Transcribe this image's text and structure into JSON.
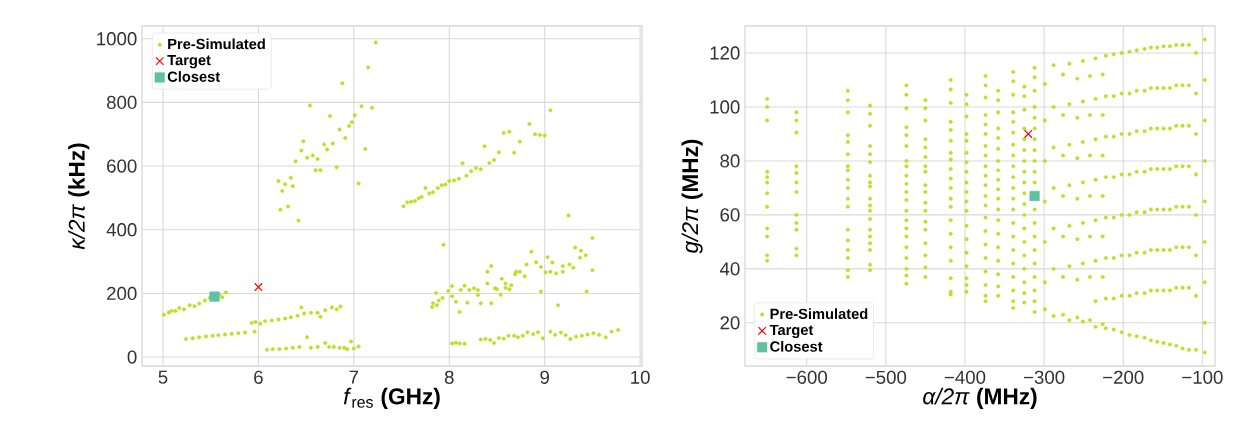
{
  "chart_data": [
    {
      "type": "scatter",
      "xlabel": "*f*$_{res}$ **(GHz)**",
      "ylabel": "*κ/2π* **(kHz)**",
      "grid": true,
      "legend": "top left",
      "xlim": [
        4.78,
        10.02
      ],
      "ylim": [
        -28,
        1040
      ],
      "xticks": [
        5,
        6,
        7,
        8,
        9,
        10
      ],
      "yticks": [
        0,
        200,
        400,
        600,
        800,
        1000
      ],
      "series": [
        {
          "name": "Pre-Simulated",
          "color": "#bcdf27",
          "marker": "circle",
          "x": [
            5.01,
            5.06,
            5.09,
            5.13,
            5.17,
            5.22,
            5.28,
            5.33,
            5.38,
            5.44,
            5.49,
            5.59,
            5.62,
            5.66,
            5.24,
            5.31,
            5.38,
            5.45,
            5.52,
            5.58,
            5.65,
            5.72,
            5.79,
            5.86,
            5.96,
            5.93,
            5.97,
            6.02,
            6.07,
            6.14,
            6.21,
            6.28,
            6.34,
            6.41,
            6.45,
            6.48,
            6.55,
            6.62,
            6.65,
            6.7,
            6.77,
            6.82,
            6.86,
            6.09,
            6.15,
            6.22,
            6.29,
            6.36,
            6.43,
            6.51,
            6.55,
            6.62,
            6.7,
            6.74,
            6.79,
            6.85,
            6.9,
            6.93,
            6.97,
            7.0,
            7.05,
            7.23,
            7.15,
            6.88,
            6.54,
            7.08,
            7.19,
            6.75,
            7.01,
            6.98,
            6.95,
            6.85,
            6.91,
            6.47,
            6.45,
            6.69,
            6.78,
            6.72,
            7.12,
            6.57,
            6.51,
            6.62,
            6.39,
            6.6,
            6.65,
            6.82,
            7.05,
            6.21,
            6.34,
            6.28,
            6.36,
            6.25,
            6.23,
            6.31,
            6.42,
            7.52,
            7.56,
            7.6,
            7.64,
            7.68,
            7.71,
            7.75,
            7.79,
            7.83,
            7.88,
            7.92,
            7.96,
            8.0,
            8.05,
            8.1,
            8.14,
            8.18,
            8.23,
            8.28,
            8.33,
            8.37,
            8.42,
            8.47,
            8.52,
            8.57,
            8.63,
            8.68,
            8.74,
            8.84,
            8.9,
            8.95,
            9.0,
            9.06,
            9.25,
            7.94,
            9.5,
            9.32,
            9.38,
            9.43,
            9.37,
            8.86,
            9.03,
            9.08,
            8.81,
            8.91,
            8.44,
            9.19,
            9.26,
            9.3,
            8.96,
            9.01,
            9.12,
            9.19,
            8.69,
            8.7,
            8.79,
            8.74,
            8.4,
            8.55,
            8.4,
            8.59,
            8.65,
            8.59,
            8.63,
            8.5,
            8.16,
            8.03,
            7.99,
            8.12,
            8.26,
            8.3,
            8.21,
            8.54,
            8.3,
            7.86,
            7.93,
            7.89,
            8.03,
            7.83,
            7.87,
            7.82,
            8.07,
            8.19,
            8.33,
            8.44,
            8.11,
            9.14,
            8.96,
            9.44,
            9.5,
            9.06,
            8.48,
            8.03,
            8.07,
            8.11,
            8.16,
            8.33,
            8.38,
            8.43,
            8.47,
            8.52,
            8.57,
            8.62,
            8.68,
            8.72,
            8.77,
            8.82,
            8.88,
            8.93,
            8.98,
            9.06,
            9.11,
            9.17,
            9.22,
            9.27,
            9.33,
            9.39,
            9.45,
            9.51,
            9.57,
            9.64,
            9.7,
            9.77
          ],
          "values": [
            133,
            140,
            145,
            145,
            154,
            150,
            163,
            160,
            168,
            178,
            186,
            196,
            188,
            203,
            57,
            59,
            62,
            65,
            67,
            69,
            71,
            73,
            75,
            77,
            80,
            107,
            110,
            105,
            113,
            115,
            118,
            121,
            125,
            130,
            156,
            137,
            139,
            139,
            127,
            147,
            156,
            150,
            159,
            23,
            25,
            25,
            27,
            29,
            32,
            62,
            29,
            32,
            44,
            32,
            32,
            29,
            29,
            25,
            49,
            27,
            33,
            988,
            910,
            860,
            790,
            788,
            783,
            757,
            760,
            738,
            726,
            715,
            688,
            678,
            649,
            668,
            671,
            652,
            654,
            633,
            626,
            622,
            615,
            587,
            587,
            596,
            545,
            553,
            563,
            543,
            537,
            522,
            463,
            473,
            429,
            474,
            486,
            488,
            490,
            499,
            503,
            531,
            514,
            518,
            531,
            540,
            542,
            553,
            555,
            560,
            609,
            570,
            584,
            594,
            590,
            662,
            610,
            619,
            643,
            704,
            708,
            642,
            677,
            732,
            700,
            698,
            696,
            775,
            445,
            353,
            374,
            344,
            334,
            320,
            312,
            331,
            314,
            297,
            291,
            298,
            286,
            286,
            291,
            281,
            283,
            266,
            263,
            268,
            260,
            268,
            254,
            268,
            268,
            246,
            231,
            231,
            226,
            218,
            213,
            213,
            224,
            223,
            208,
            211,
            216,
            211,
            211,
            196,
            195,
            201,
            186,
            178,
            191,
            169,
            163,
            157,
            174,
            171,
            169,
            169,
            142,
            163,
            206,
            206,
            273,
            268,
            216,
            43,
            45,
            43,
            42,
            55,
            57,
            54,
            44,
            60,
            58,
            67,
            67,
            62,
            67,
            78,
            72,
            78,
            59,
            80,
            70,
            77,
            69,
            57,
            64,
            67,
            71,
            75,
            70,
            62,
            80,
            85
          ]
        },
        {
          "name": "Target",
          "color": "#ff0000",
          "marker": "cross",
          "x": [
            6.0
          ],
          "values": [
            220
          ]
        },
        {
          "name": "Closest",
          "color": "#5ec2a2",
          "marker": "square",
          "x": [
            5.54
          ],
          "values": [
            190
          ]
        }
      ]
    },
    {
      "type": "scatter",
      "xlabel": "*α/2π* **(MHz)**",
      "ylabel": "*g/2π* **(MHz)**",
      "grid": true,
      "legend": "bottom left",
      "xlim": [
        -678,
        -84
      ],
      "ylim": [
        4,
        130
      ],
      "xticks": [
        {
          "value": -600,
          "label": "−600"
        },
        {
          "value": -500,
          "label": "−500"
        },
        {
          "value": -400,
          "label": "−400"
        },
        {
          "value": -300,
          "label": "−300"
        },
        {
          "value": -200,
          "label": "−200"
        },
        {
          "value": -100,
          "label": "−100"
        }
      ],
      "yticks": [
        20,
        40,
        60,
        80,
        100,
        120
      ],
      "series": [
        {
          "name": "Pre-Simulated",
          "color": "#bcdf27",
          "marker": "circle",
          "x": [
            -650,
            -650,
            -650,
            -650,
            -650,
            -650,
            -650,
            -650,
            -650,
            -650,
            -650,
            -650,
            -613,
            -613,
            -613,
            -613,
            -613,
            -613,
            -613,
            -613,
            -613,
            -613,
            -613,
            -613,
            -548,
            -548,
            -548,
            -548,
            -548,
            -548,
            -548,
            -548,
            -548,
            -548,
            -548,
            -548,
            -548,
            -548,
            -548,
            -548,
            -548,
            -548,
            -520,
            -520,
            -520,
            -520,
            -520,
            -520,
            -520,
            -520,
            -520,
            -520,
            -520,
            -520,
            -520,
            -520,
            -520,
            -520,
            -520,
            -520,
            -520,
            -474,
            -474,
            -474,
            -474,
            -474,
            -474,
            -474,
            -474,
            -474,
            -474,
            -474,
            -474,
            -474,
            -474,
            -474,
            -474,
            -474,
            -474,
            -474,
            -474,
            -474,
            -450,
            -450,
            -450,
            -450,
            -450,
            -450,
            -450,
            -450,
            -450,
            -450,
            -450,
            -450,
            -450,
            -450,
            -450,
            -450,
            -450,
            -450,
            -418,
            -418,
            -418,
            -418,
            -418,
            -418,
            -418,
            -418,
            -418,
            -418,
            -418,
            -418,
            -418,
            -418,
            -418,
            -418,
            -418,
            -418,
            -418,
            -418,
            -398,
            -398,
            -398,
            -398,
            -398,
            -398,
            -398,
            -398,
            -398,
            -398,
            -398,
            -398,
            -398,
            -398,
            -398,
            -398,
            -398,
            -398,
            -398,
            -374,
            -374,
            -374,
            -374,
            -374,
            -374,
            -374,
            -374,
            -374,
            -374,
            -374,
            -374,
            -374,
            -374,
            -374,
            -374,
            -374,
            -374,
            -374,
            -374,
            -374,
            -358,
            -358,
            -358,
            -358,
            -358,
            -358,
            -358,
            -358,
            -358,
            -358,
            -358,
            -358,
            -358,
            -358,
            -358,
            -358,
            -358,
            -358,
            -358,
            -339,
            -339,
            -339,
            -339,
            -339,
            -339,
            -339,
            -339,
            -339,
            -339,
            -339,
            -339,
            -339,
            -339,
            -339,
            -339,
            -339,
            -339,
            -339,
            -339,
            -339,
            -325,
            -325,
            -325,
            -325,
            -325,
            -325,
            -325,
            -325,
            -325,
            -325,
            -325,
            -325,
            -325,
            -325,
            -325,
            -325,
            -325,
            -325,
            -325,
            -312,
            -312,
            -312,
            -312,
            -312,
            -312,
            -312,
            -312,
            -312,
            -312,
            -312,
            -312,
            -312,
            -312,
            -312,
            -312,
            -312,
            -312,
            -312,
            -312,
            -299,
            -299,
            -299,
            -299,
            -299,
            -299,
            -299,
            -288,
            -288,
            -288,
            -288,
            -288,
            -288,
            -288,
            -276,
            -276,
            -276,
            -276,
            -276,
            -276,
            -276,
            -268,
            -268,
            -268,
            -268,
            -268,
            -268,
            -268,
            -258,
            -258,
            -258,
            -258,
            -258,
            -258,
            -258,
            -251,
            -251,
            -251,
            -251,
            -251,
            -251,
            -251,
            -242,
            -242,
            -242,
            -242,
            -242,
            -242,
            -242,
            -235,
            -235,
            -235,
            -235,
            -235,
            -235,
            -235,
            -235,
            -226,
            -226,
            -226,
            -226,
            -226,
            -226,
            -226,
            -222,
            -222,
            -222,
            -222,
            -222,
            -222,
            -222,
            -222,
            -212,
            -212,
            -212,
            -212,
            -212,
            -212,
            -212,
            -212,
            -202,
            -202,
            -202,
            -202,
            -202,
            -202,
            -202,
            -202,
            -192,
            -192,
            -192,
            -192,
            -192,
            -192,
            -192,
            -192,
            -183,
            -183,
            -183,
            -183,
            -183,
            -183,
            -183,
            -183,
            -173,
            -173,
            -173,
            -173,
            -173,
            -173,
            -173,
            -173,
            -165,
            -165,
            -165,
            -165,
            -165,
            -165,
            -165,
            -165,
            -157,
            -157,
            -157,
            -157,
            -157,
            -157,
            -157,
            -157,
            -149,
            -149,
            -149,
            -149,
            -149,
            -149,
            -149,
            -149,
            -141,
            -141,
            -141,
            -141,
            -141,
            -141,
            -141,
            -141,
            -133,
            -133,
            -133,
            -133,
            -133,
            -133,
            -133,
            -133,
            -125,
            -125,
            -125,
            -125,
            -125,
            -125,
            -125,
            -125,
            -117,
            -117,
            -117,
            -117,
            -117,
            -117,
            -117,
            -117,
            -108,
            -108,
            -108,
            -108,
            -108,
            -108,
            -108,
            -108,
            -97,
            -97,
            -97,
            -97,
            -97,
            -97,
            -97,
            -97,
            -97
          ],
          "values": [
            103,
            100,
            95,
            76,
            74,
            72,
            68,
            63,
            55,
            52,
            45,
            43,
            98,
            95,
            90.5,
            78,
            75.5,
            72,
            68.5,
            60,
            57,
            54.5,
            47.5,
            45,
            106,
            102.5,
            98,
            89.5,
            87,
            82.5,
            78,
            76.5,
            73,
            70,
            66,
            63,
            54.5,
            50.5,
            47,
            44,
            39.5,
            37,
            100.5,
            97.5,
            93,
            85.5,
            82.5,
            79.5,
            74.5,
            72,
            70.5,
            66,
            63.5,
            61.5,
            58.5,
            54.5,
            52,
            49.5,
            47,
            41.5,
            39.5,
            108,
            104.5,
            99.5,
            92.5,
            89.5,
            85.5,
            80,
            78,
            74.5,
            71.5,
            68.5,
            65.5,
            61.5,
            58,
            55,
            52,
            48,
            44,
            40,
            37.5,
            34.5,
            102.5,
            99.5,
            95,
            88,
            85,
            81.5,
            78,
            76,
            71,
            68.5,
            64.5,
            61.5,
            57.5,
            54.5,
            49.5,
            45,
            40.5,
            37,
            110,
            106.5,
            101.5,
            94.5,
            91.5,
            87.5,
            83,
            80.5,
            77,
            73.5,
            70,
            66,
            63,
            58,
            53,
            48,
            43,
            36.5,
            31.5,
            30.5,
            104.5,
            101,
            96.5,
            90,
            87.5,
            83,
            79.5,
            76,
            72,
            68.5,
            65,
            61.5,
            56,
            51,
            46,
            41,
            36.5,
            34,
            31.5,
            111.5,
            108,
            103.5,
            97,
            93.5,
            90,
            85.5,
            82,
            78,
            74.5,
            71,
            67,
            63.5,
            59,
            54,
            49,
            44,
            39,
            34,
            30,
            28,
            106,
            102.5,
            98,
            92,
            88.5,
            84.5,
            80,
            76.5,
            73,
            69.5,
            66,
            62,
            58,
            53,
            48,
            43,
            38,
            33.5,
            30,
            113,
            109.5,
            104.5,
            98,
            94.5,
            90.5,
            86,
            82,
            78,
            74,
            70,
            66,
            62,
            57,
            52,
            47,
            42,
            37,
            32,
            28,
            25.5,
            107.5,
            104,
            99,
            92,
            88,
            84,
            80,
            76,
            72,
            68,
            64,
            60,
            55,
            50,
            45,
            40,
            35,
            31,
            27.5,
            114.5,
            111,
            106,
            100,
            96,
            92,
            88,
            84,
            80,
            76,
            72,
            62,
            57,
            52,
            47,
            42,
            37,
            32,
            28,
            24,
            108.5,
            95,
            80,
            65,
            50,
            35,
            25,
            115.5,
            100,
            85,
            70,
            55,
            40,
            22.5,
            112,
            97,
            82,
            67,
            52,
            37,
            23,
            116,
            101,
            86,
            71,
            56,
            41,
            21,
            110.5,
            96,
            81,
            66,
            51,
            36,
            22,
            117,
            102,
            87,
            72,
            57,
            42,
            20.5,
            111.5,
            97,
            82,
            67,
            52,
            37,
            21,
            118,
            103,
            88,
            73,
            58,
            43,
            28,
            18.5,
            112,
            97,
            82,
            67,
            52,
            37,
            19.5,
            119,
            104,
            89,
            74,
            59,
            44,
            29,
            18,
            119.5,
            104,
            89,
            74,
            59,
            44,
            29,
            17.5,
            120,
            105,
            90,
            75,
            60,
            45,
            30,
            16.5,
            120.5,
            105,
            90,
            75,
            60,
            45,
            30,
            15.5,
            121,
            106,
            91,
            76,
            61,
            46,
            31,
            15,
            121.5,
            106,
            91,
            76,
            61,
            46,
            31,
            14.5,
            122,
            107,
            92,
            77,
            62,
            47,
            32,
            13.5,
            122,
            107,
            92,
            77,
            62,
            47,
            32,
            13,
            122.5,
            107,
            92,
            77,
            62,
            47,
            32,
            12.5,
            122.5,
            107,
            92,
            77,
            62,
            47,
            32,
            12,
            123,
            108,
            93,
            78,
            63,
            48,
            33,
            11.5,
            123,
            108,
            93,
            78,
            63,
            48,
            33,
            10.5,
            123,
            108,
            93,
            78,
            63,
            48,
            33,
            10,
            120,
            105,
            90,
            75,
            60,
            45,
            30,
            10,
            125,
            110,
            95,
            80,
            65,
            50,
            35,
            20,
            9
          ]
        },
        {
          "name": "Target",
          "color": "#ff0000",
          "marker": "cross",
          "x": [
            -320
          ],
          "values": [
            90
          ]
        },
        {
          "name": "Closest",
          "color": "#5ec2a2",
          "marker": "square",
          "x": [
            -312
          ],
          "values": [
            67
          ]
        }
      ]
    }
  ]
}
